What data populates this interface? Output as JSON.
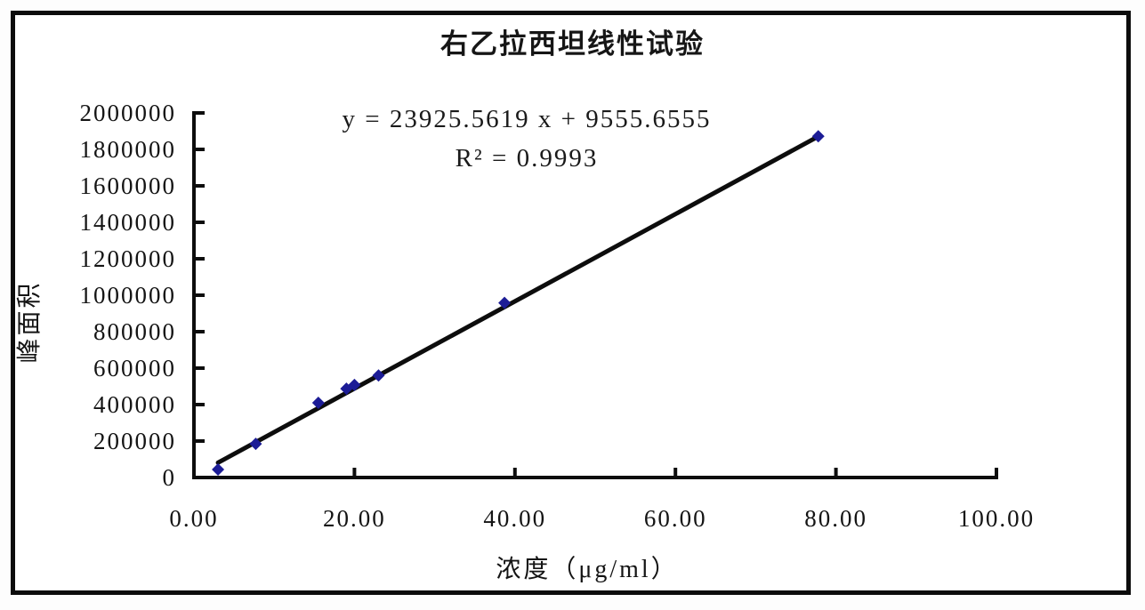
{
  "chart_data": {
    "type": "scatter",
    "title": "右乙拉西坦线性试验",
    "equation": "y = 23925.5619 x + 9555.6555",
    "r_squared": "R² = 0.9993",
    "xlabel": "浓度（μg/ml）",
    "ylabel": "峰面积",
    "xlim": [
      0,
      100
    ],
    "ylim": [
      0,
      2000000
    ],
    "grid": false,
    "legend": "none",
    "x_ticks": [
      {
        "value": 0,
        "label": "0.00"
      },
      {
        "value": 20,
        "label": "20.00"
      },
      {
        "value": 40,
        "label": "40.00"
      },
      {
        "value": 60,
        "label": "60.00"
      },
      {
        "value": 80,
        "label": "80.00"
      },
      {
        "value": 100,
        "label": "100.00"
      }
    ],
    "y_ticks": [
      {
        "value": 0,
        "label": "0"
      },
      {
        "value": 200000,
        "label": "200000"
      },
      {
        "value": 400000,
        "label": "400000"
      },
      {
        "value": 600000,
        "label": "600000"
      },
      {
        "value": 800000,
        "label": "800000"
      },
      {
        "value": 1000000,
        "label": "1000000"
      },
      {
        "value": 1200000,
        "label": "1200000"
      },
      {
        "value": 1400000,
        "label": "1400000"
      },
      {
        "value": 1600000,
        "label": "1600000"
      },
      {
        "value": 1800000,
        "label": "1800000"
      },
      {
        "value": 2000000,
        "label": "2000000"
      }
    ],
    "trendline": {
      "slope": 23925.5619,
      "intercept": 9555.6555,
      "x_start": 3.0,
      "x_end": 77.8
    },
    "series": [
      {
        "name": "峰面积",
        "marker": "diamond",
        "points": [
          [
            3.0,
            44000
          ],
          [
            7.7,
            185000
          ],
          [
            15.5,
            410000
          ],
          [
            19.0,
            487000
          ],
          [
            20.0,
            508000
          ],
          [
            23.0,
            560000
          ],
          [
            38.7,
            958000
          ],
          [
            77.8,
            1872000
          ]
        ]
      }
    ],
    "colors": {
      "axis": "#0d0d0d",
      "trendline": "#0d0d0d",
      "marker": "#1c1c96",
      "text": "#141414",
      "frame_border": "#0c0c0c"
    }
  }
}
